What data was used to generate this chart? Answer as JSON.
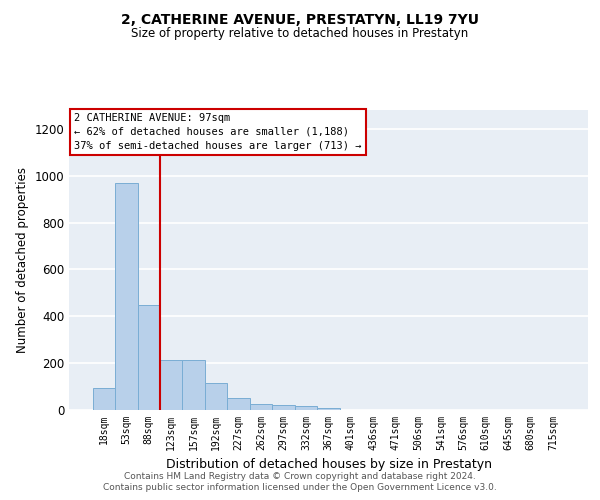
{
  "title": "2, CATHERINE AVENUE, PRESTATYN, LL19 7YU",
  "subtitle": "Size of property relative to detached houses in Prestatyn",
  "xlabel": "Distribution of detached houses by size in Prestatyn",
  "ylabel": "Number of detached properties",
  "bar_color": "#b8d0ea",
  "bar_edgecolor": "#7aadd4",
  "background_color": "#e8eef5",
  "grid_color": "#ffffff",
  "categories": [
    "18sqm",
    "53sqm",
    "88sqm",
    "123sqm",
    "157sqm",
    "192sqm",
    "227sqm",
    "262sqm",
    "297sqm",
    "332sqm",
    "367sqm",
    "401sqm",
    "436sqm",
    "471sqm",
    "506sqm",
    "541sqm",
    "576sqm",
    "610sqm",
    "645sqm",
    "680sqm",
    "715sqm"
  ],
  "values": [
    95,
    970,
    450,
    215,
    215,
    115,
    50,
    25,
    20,
    15,
    10,
    0,
    0,
    0,
    0,
    0,
    0,
    0,
    0,
    0,
    0
  ],
  "ylim": [
    0,
    1280
  ],
  "yticks": [
    0,
    200,
    400,
    600,
    800,
    1000,
    1200
  ],
  "property_label": "2 CATHERINE AVENUE: 97sqm",
  "pct_smaller_label": "← 62% of detached houses are smaller (1,188)",
  "pct_larger_label": "37% of semi-detached houses are larger (713) →",
  "vline_x_index": 2.5,
  "annotation_box_edgecolor": "#cc0000",
  "footer_line1": "Contains HM Land Registry data © Crown copyright and database right 2024.",
  "footer_line2": "Contains public sector information licensed under the Open Government Licence v3.0."
}
